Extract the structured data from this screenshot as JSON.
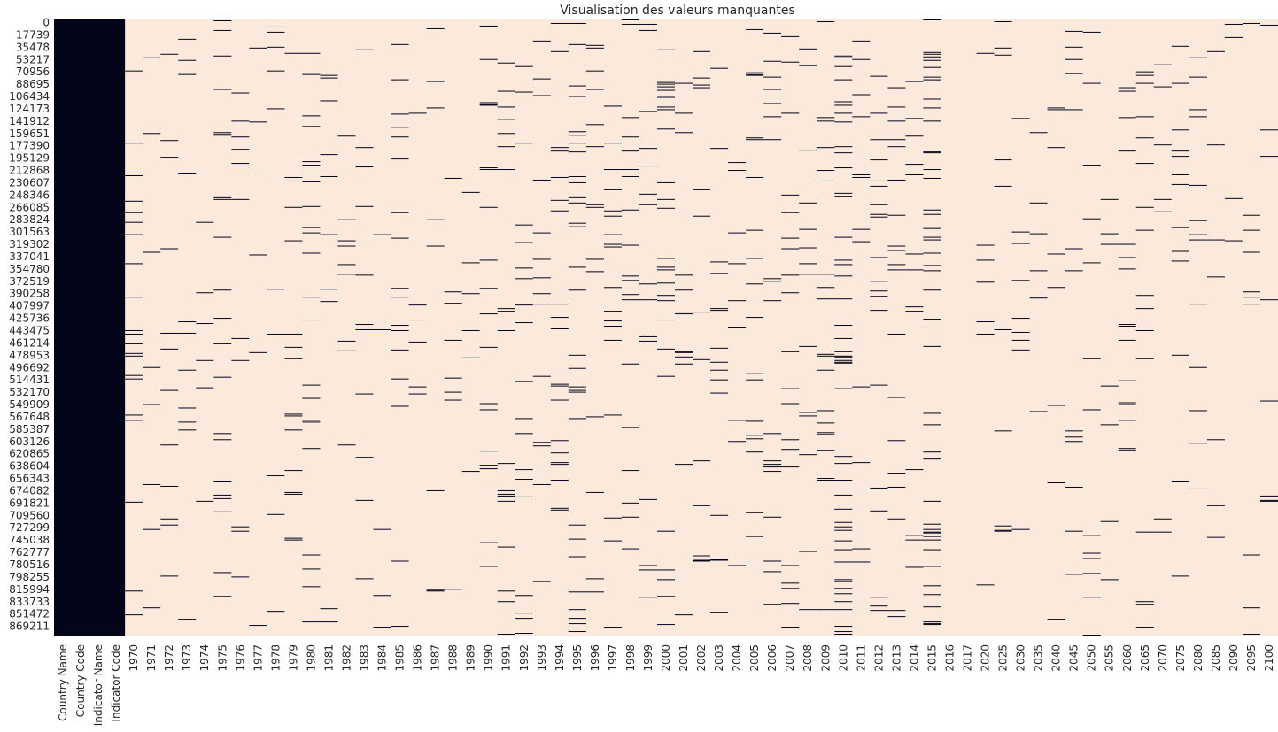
{
  "chart_data": {
    "type": "heatmap",
    "title": "Visualisation des valeurs manquantes",
    "xlabel": "",
    "ylabel": "",
    "colors": {
      "present": "#fbe9dc",
      "missing": "#03051a"
    },
    "colorbar": false,
    "row_count": 886930,
    "y_tick_labels": [
      "0",
      "17739",
      "35478",
      "53217",
      "70956",
      "88695",
      "106434",
      "124173",
      "141912",
      "159651",
      "177390",
      "195129",
      "212868",
      "230607",
      "248346",
      "266085",
      "283824",
      "301563",
      "319302",
      "337041",
      "354780",
      "372519",
      "390258",
      "407997",
      "425736",
      "443475",
      "461214",
      "478953",
      "496692",
      "514431",
      "532170",
      "549909",
      "567648",
      "585387",
      "603126",
      "620865",
      "638604",
      "656343",
      "674082",
      "691821",
      "709560",
      "727299",
      "745038",
      "762777",
      "780516",
      "798255",
      "815994",
      "833733",
      "851472",
      "869211"
    ],
    "columns": [
      "Country Name",
      "Country Code",
      "Indicator Name",
      "Indicator Code",
      "1970",
      "1971",
      "1972",
      "1973",
      "1974",
      "1975",
      "1976",
      "1977",
      "1978",
      "1979",
      "1980",
      "1981",
      "1982",
      "1983",
      "1984",
      "1985",
      "1986",
      "1987",
      "1988",
      "1989",
      "1990",
      "1991",
      "1992",
      "1993",
      "1994",
      "1995",
      "1996",
      "1997",
      "1998",
      "1999",
      "2000",
      "2001",
      "2002",
      "2003",
      "2004",
      "2005",
      "2006",
      "2007",
      "2008",
      "2009",
      "2010",
      "2011",
      "2012",
      "2013",
      "2014",
      "2015",
      "2016",
      "2017",
      "2020",
      "2025",
      "2030",
      "2035",
      "2040",
      "2045",
      "2050",
      "2055",
      "2060",
      "2065",
      "2070",
      "2075",
      "2080",
      "2085",
      "2090",
      "2095",
      "2100"
    ],
    "fully_present_columns": [
      "Country Name",
      "Country Code",
      "Indicator Name",
      "Indicator Code"
    ],
    "mostly_missing_columns": [
      "2016",
      "2017"
    ]
  }
}
